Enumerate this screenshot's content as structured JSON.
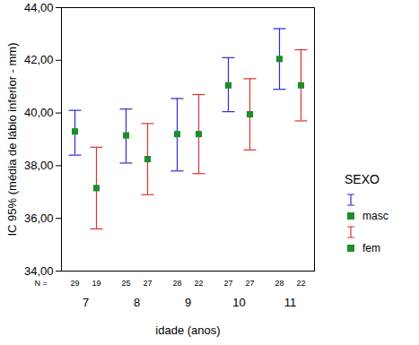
{
  "chart_data": {
    "type": "errorbar",
    "x_label": "idade (anos)",
    "y_label": "IC 95% (média de lábio inferior - mm)",
    "categories": [
      7,
      8,
      9,
      10,
      11
    ],
    "n_label": "N =",
    "legend_title": "SEXO",
    "legend": "right",
    "grid": false,
    "series": [
      {
        "name": "masc",
        "color": "#2b2bd9",
        "marker": "square",
        "values": [
          39.3,
          39.15,
          39.2,
          41.05,
          42.05
        ],
        "ci_lower": [
          38.4,
          38.1,
          37.8,
          40.05,
          40.9
        ],
        "ci_upper": [
          40.1,
          40.15,
          40.55,
          42.1,
          43.2
        ],
        "n": [
          29,
          25,
          28,
          27,
          28
        ]
      },
      {
        "name": "fem",
        "color": "#e03030",
        "marker": "square",
        "values": [
          37.15,
          38.25,
          39.2,
          39.95,
          41.05
        ],
        "ci_lower": [
          35.6,
          36.9,
          37.7,
          38.6,
          39.7
        ],
        "ci_upper": [
          38.7,
          39.6,
          40.7,
          41.3,
          42.4
        ],
        "n": [
          19,
          27,
          22,
          27,
          22
        ]
      }
    ],
    "ylim": [
      34,
      44
    ],
    "yticks": [
      {
        "value": 34,
        "label": "34,00"
      },
      {
        "value": 36,
        "label": "36,00"
      },
      {
        "value": 38,
        "label": "38,00"
      },
      {
        "value": 40,
        "label": "40,00"
      },
      {
        "value": 42,
        "label": "42,00"
      },
      {
        "value": 44,
        "label": "44,00"
      }
    ]
  }
}
